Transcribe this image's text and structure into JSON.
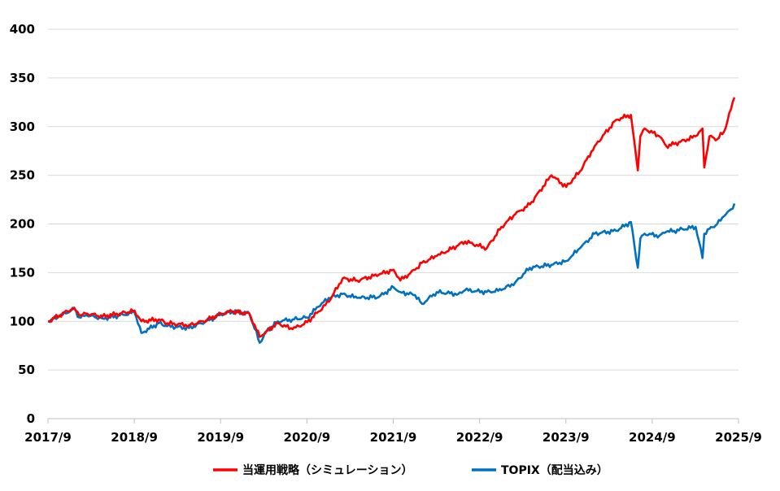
{
  "chart_data": {
    "type": "line",
    "title": "",
    "xlabel": "",
    "ylabel": "",
    "ylim": [
      0,
      400
    ],
    "y_ticks": [
      0,
      50,
      100,
      150,
      200,
      250,
      300,
      350,
      400
    ],
    "x_ticks": [
      "2017/9",
      "2018/9",
      "2019/9",
      "2020/9",
      "2021/9",
      "2022/9",
      "2023/9",
      "2024/9",
      "2025/9"
    ],
    "grid": "horizontal",
    "legend_position": "bottom",
    "x_start": 2017.667,
    "x_end": 2025.667,
    "series": [
      {
        "name": "当運用戦略（シミュレーション）",
        "color": "#ff0000",
        "x": [
          2017.67,
          2017.8,
          2017.97,
          2018.03,
          2018.12,
          2018.3,
          2018.5,
          2018.67,
          2018.75,
          2018.95,
          2019.05,
          2019.3,
          2019.5,
          2019.67,
          2019.8,
          2020.0,
          2020.12,
          2020.2,
          2020.33,
          2020.5,
          2020.67,
          2020.8,
          2020.92,
          2021.08,
          2021.25,
          2021.5,
          2021.67,
          2021.75,
          2021.92,
          2022.0,
          2022.17,
          2022.42,
          2022.5,
          2022.75,
          2022.92,
          2023.08,
          2023.25,
          2023.5,
          2023.67,
          2023.83,
          2024.0,
          2024.25,
          2024.42,
          2024.5,
          2024.53,
          2024.58,
          2024.75,
          2024.83,
          2024.92,
          2025.17,
          2025.25,
          2025.27,
          2025.33,
          2025.42,
          2025.5,
          2025.58,
          2025.62
        ],
        "values": [
          100,
          106,
          114,
          106,
          108,
          105,
          108,
          111,
          100,
          102,
          98,
          96,
          101,
          108,
          110,
          108,
          84,
          90,
          98,
          92,
          99,
          110,
          120,
          144,
          142,
          148,
          153,
          142,
          153,
          160,
          167,
          178,
          182,
          175,
          197,
          210,
          220,
          250,
          238,
          254,
          280,
          307,
          312,
          255,
          290,
          298,
          290,
          280,
          282,
          290,
          298,
          258,
          290,
          287,
          295,
          318,
          330
        ]
      },
      {
        "name": "TOPIX（配当込み）",
        "color": "#0070c0",
        "x": [
          2017.67,
          2017.8,
          2017.97,
          2018.03,
          2018.12,
          2018.3,
          2018.5,
          2018.67,
          2018.75,
          2018.95,
          2019.05,
          2019.3,
          2019.5,
          2019.67,
          2019.8,
          2020.0,
          2020.12,
          2020.2,
          2020.33,
          2020.5,
          2020.67,
          2020.8,
          2020.92,
          2021.08,
          2021.25,
          2021.5,
          2021.67,
          2021.75,
          2021.92,
          2022.0,
          2022.17,
          2022.42,
          2022.5,
          2022.75,
          2022.92,
          2023.08,
          2023.25,
          2023.5,
          2023.67,
          2023.83,
          2024.0,
          2024.25,
          2024.42,
          2024.5,
          2024.53,
          2024.58,
          2024.75,
          2024.83,
          2024.92,
          2025.17,
          2025.25,
          2025.27,
          2025.33,
          2025.42,
          2025.5,
          2025.58,
          2025.62
        ],
        "values": [
          100,
          105,
          113,
          104,
          106,
          103,
          106,
          109,
          88,
          98,
          95,
          93,
          100,
          107,
          110,
          108,
          78,
          90,
          100,
          102,
          104,
          115,
          124,
          128,
          124,
          125,
          135,
          130,
          127,
          118,
          130,
          128,
          132,
          130,
          132,
          140,
          155,
          158,
          162,
          175,
          190,
          193,
          202,
          155,
          185,
          190,
          188,
          192,
          193,
          197,
          165,
          190,
          195,
          200,
          208,
          215,
          221
        ]
      }
    ]
  }
}
